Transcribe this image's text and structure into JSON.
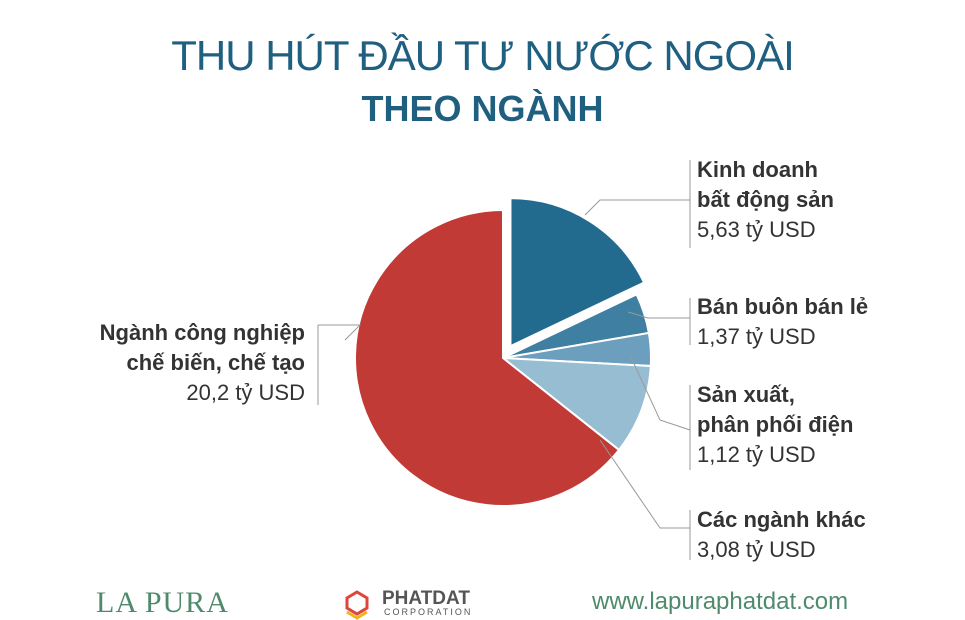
{
  "title_line1": "THU HÚT ĐẦU TƯ NƯỚC NGOÀI",
  "title_line2": "THEO NGÀNH",
  "chart_data": {
    "type": "pie",
    "unit": "tỷ USD",
    "slices": [
      {
        "name": "Kinh doanh bất động sản",
        "name_lines": [
          "Kinh doanh",
          "bất động sản"
        ],
        "value_label": "5,63 tỷ USD",
        "value": 5.63,
        "color": "#236a8f",
        "exploded": true
      },
      {
        "name": "Bán buôn bán lẻ",
        "name_lines": [
          "Bán buôn bán lẻ"
        ],
        "value_label": "1,37 tỷ USD",
        "value": 1.37,
        "color": "#3f7fa2"
      },
      {
        "name": "Sản xuất, phân phối điện",
        "name_lines": [
          "Sản xuất,",
          "phân phối điện"
        ],
        "value_label": "1,12 tỷ USD",
        "value": 1.12,
        "color": "#6b9fbd"
      },
      {
        "name": "Các ngành khác",
        "name_lines": [
          "Các ngành khác"
        ],
        "value_label": "3,08 tỷ USD",
        "value": 3.08,
        "color": "#97bdd2"
      },
      {
        "name": "Ngành công nghiệp chế biến, chế tạo",
        "name_lines": [
          "Ngành công nghiệp",
          "chế biến, chế tạo"
        ],
        "value_label": "20,2 tỷ USD",
        "value": 20.2,
        "color": "#c13a35"
      }
    ]
  },
  "footer": {
    "brand": "LA PURA",
    "partner": "PHATDAT",
    "partner_sub": "CORPORATION",
    "url": "www.lapuraphatdat.com"
  }
}
